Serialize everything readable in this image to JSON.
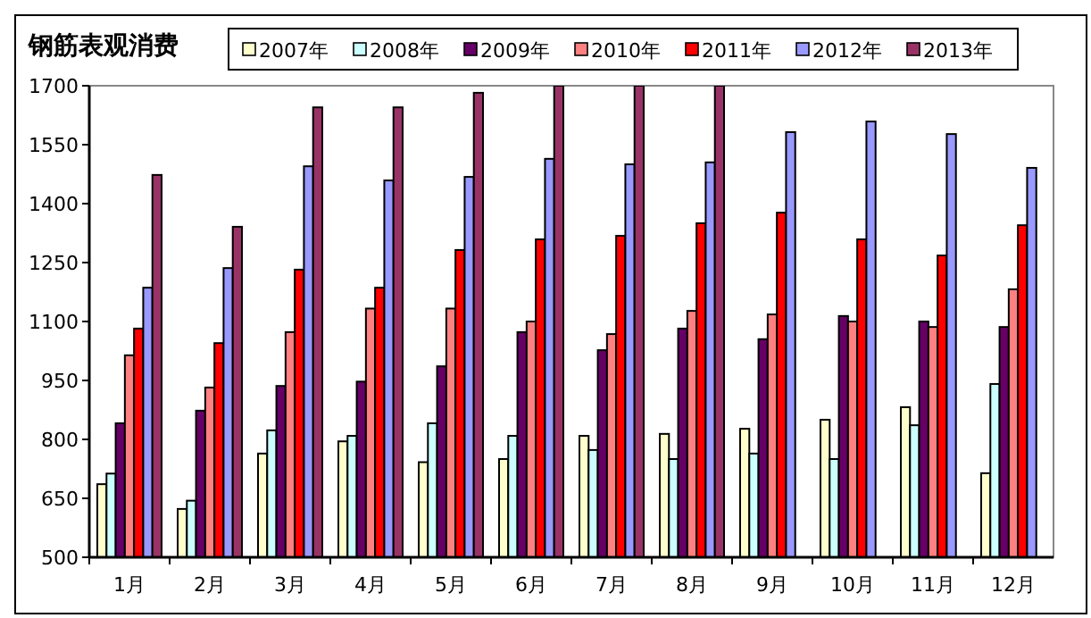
{
  "chart_data": {
    "type": "bar",
    "title": "钢筋表观消费",
    "categories": [
      "1月",
      "2月",
      "3月",
      "4月",
      "5月",
      "6月",
      "7月",
      "8月",
      "9月",
      "10月",
      "11月",
      "12月"
    ],
    "ylim": [
      500,
      1700
    ],
    "yticks": [
      500,
      650,
      800,
      950,
      1100,
      1250,
      1400,
      1550,
      1700
    ],
    "grid": false,
    "legend": "top",
    "series": [
      {
        "name": "2007年",
        "color": "#ffffcc",
        "values": [
          686,
          623,
          764,
          795,
          742,
          750,
          809,
          814,
          827,
          850,
          882,
          714
        ]
      },
      {
        "name": "2008年",
        "color": "#ccffff",
        "values": [
          713,
          644,
          823,
          809,
          841,
          809,
          773,
          750,
          764,
          750,
          836,
          941
        ]
      },
      {
        "name": "2009年",
        "color": "#660066",
        "values": [
          841,
          873,
          936,
          947,
          986,
          1073,
          1027,
          1082,
          1055,
          1114,
          1100,
          1086
        ]
      },
      {
        "name": "2010年",
        "color": "#ff8080",
        "values": [
          1014,
          932,
          1073,
          1133,
          1133,
          1100,
          1068,
          1127,
          1118,
          1100,
          1086,
          1182
        ]
      },
      {
        "name": "2011年",
        "color": "#ff0000",
        "values": [
          1082,
          1045,
          1232,
          1186,
          1282,
          1309,
          1318,
          1350,
          1377,
          1309,
          1268,
          1345
        ]
      },
      {
        "name": "2012年",
        "color": "#9999ff",
        "values": [
          1186,
          1236,
          1495,
          1459,
          1468,
          1514,
          1500,
          1505,
          1582,
          1609,
          1577,
          1491
        ]
      },
      {
        "name": "2013年",
        "color": "#993366",
        "values": [
          1473,
          1341,
          1645,
          1645,
          1682,
          1700,
          1700,
          1700,
          null,
          null,
          null,
          null
        ]
      }
    ]
  }
}
